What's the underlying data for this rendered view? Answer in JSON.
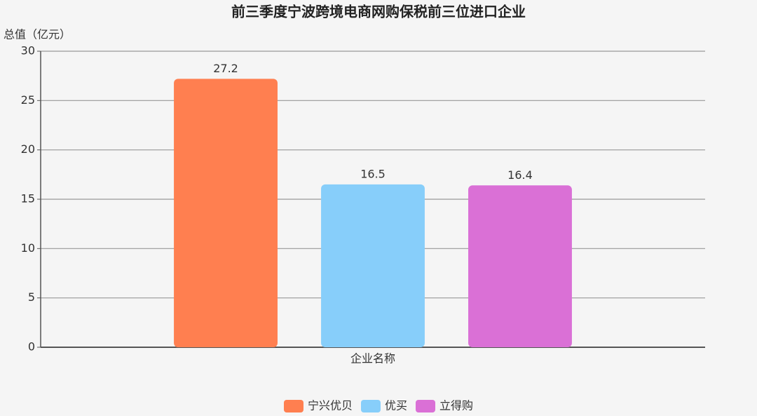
{
  "chart_data": {
    "type": "bar",
    "title": "前三季度宁波跨境电商网购保税前三位进口企业",
    "ylabel": "总值（亿元）",
    "categories": [
      "企业名称"
    ],
    "series": [
      {
        "name": "宁兴优贝",
        "color": "#ff7f50",
        "values": [
          27.2
        ]
      },
      {
        "name": "优买",
        "color": "#87cefa",
        "values": [
          16.5
        ]
      },
      {
        "name": "立得购",
        "color": "#da70d6",
        "values": [
          16.4
        ]
      }
    ],
    "ylim": [
      0,
      30
    ],
    "yticks": [
      0,
      5,
      10,
      15,
      20,
      25,
      30
    ],
    "grid": true,
    "legend": "bottom"
  }
}
